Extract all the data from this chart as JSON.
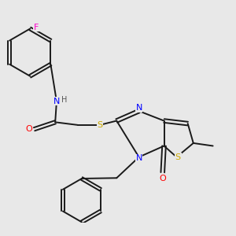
{
  "background_color": "#e8e8e8",
  "bond_color": "#1a1a1a",
  "atom_colors": {
    "N": "#0000ff",
    "O": "#ff0000",
    "S": "#ccaa00",
    "F": "#ff00cc",
    "H": "#555555",
    "C": "#1a1a1a"
  },
  "figsize": [
    3.0,
    3.0
  ],
  "dpi": 100
}
